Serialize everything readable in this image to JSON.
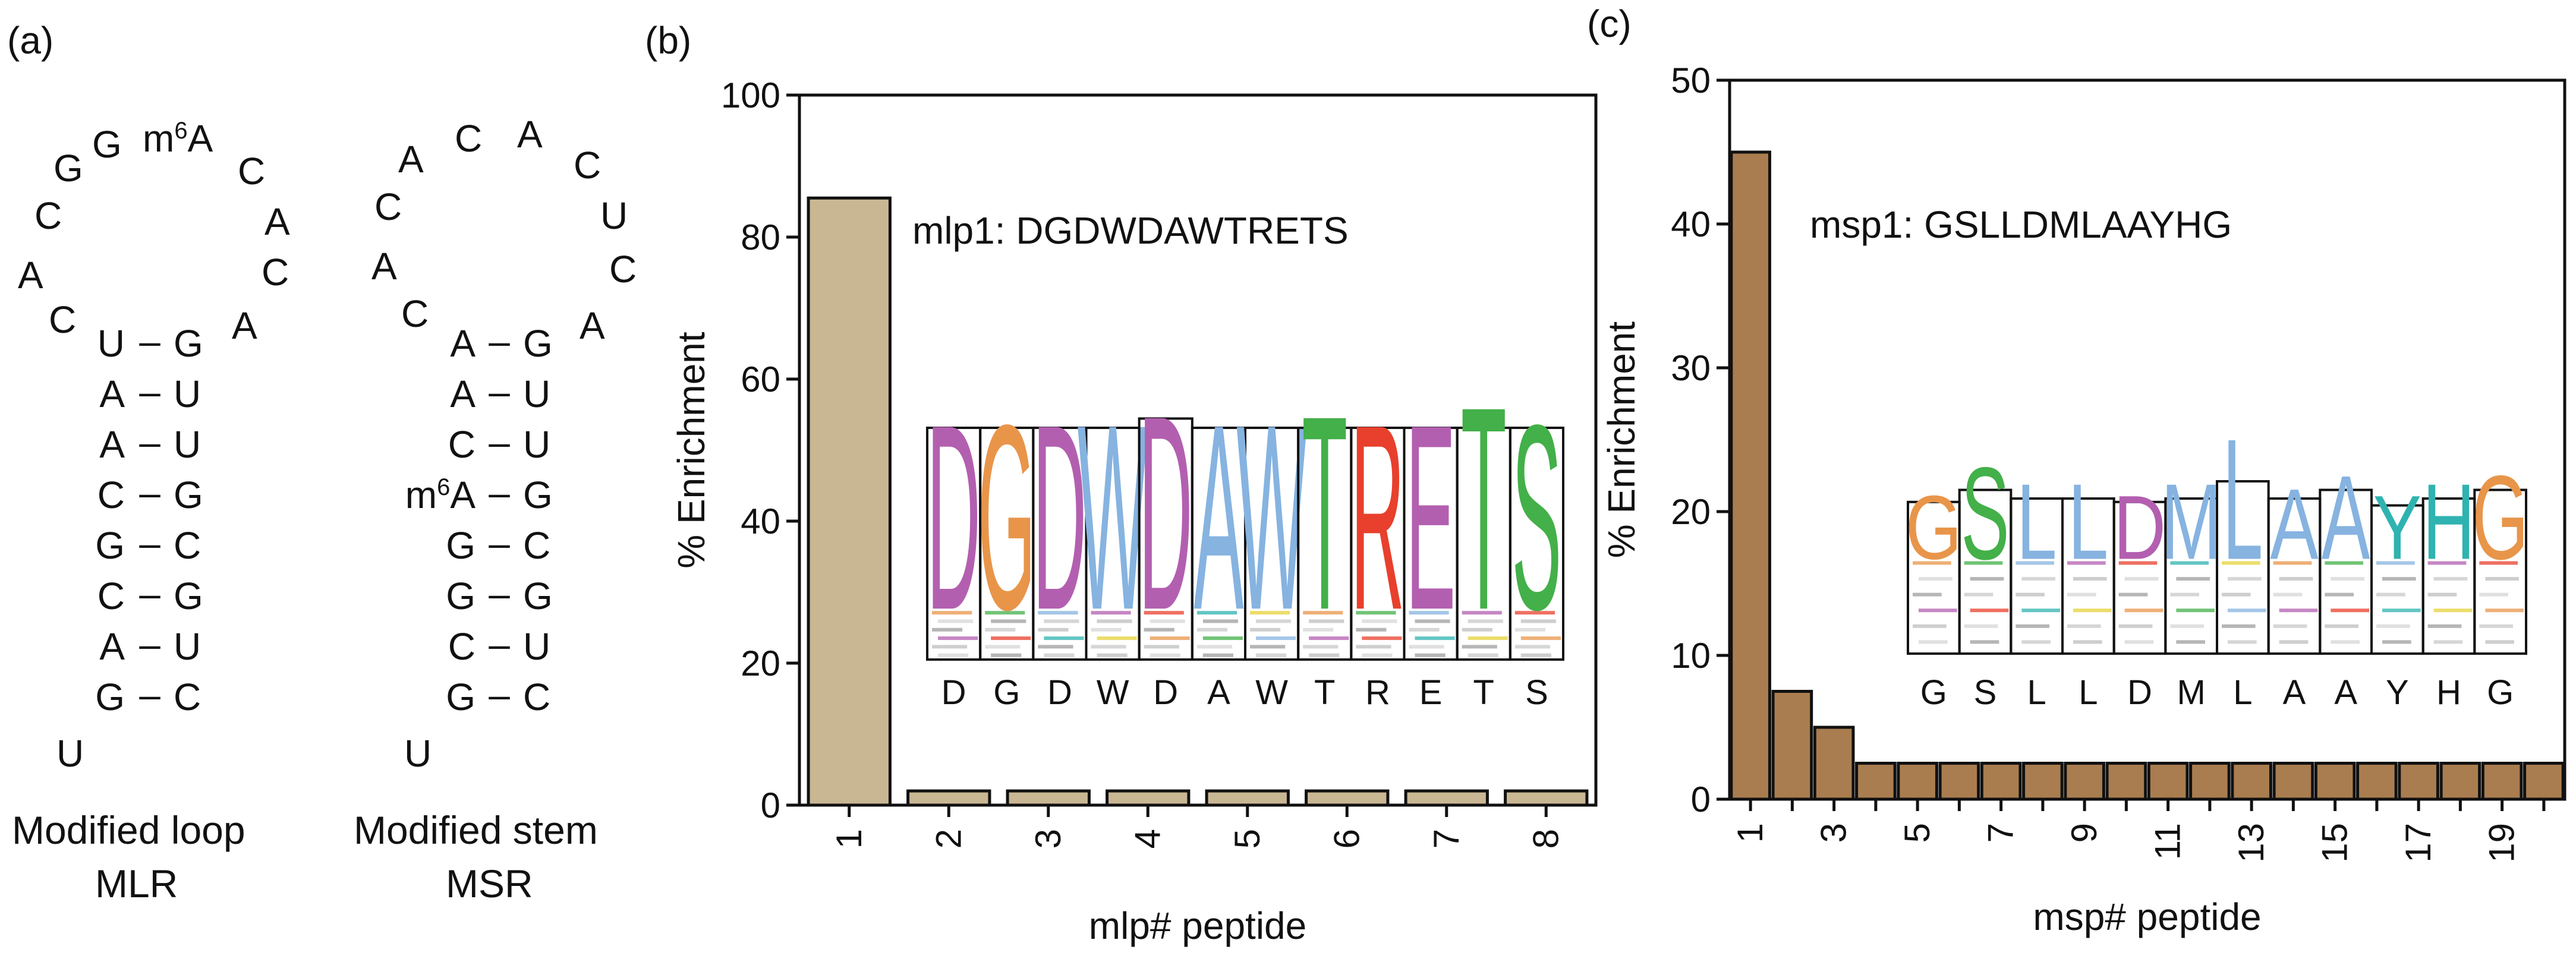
{
  "panel_labels": [
    "(a)",
    "(b)",
    "(c)"
  ],
  "structures": {
    "mlr": {
      "loop": [
        "C",
        "G",
        "G",
        "m6A",
        "C",
        "A",
        "C",
        "A",
        "A",
        "C"
      ],
      "pairs": [
        [
          "U",
          "G"
        ],
        [
          "A",
          "U"
        ],
        [
          "A",
          "U"
        ],
        [
          "C",
          "G"
        ],
        [
          "G",
          "C"
        ],
        [
          "C",
          "G"
        ],
        [
          "A",
          "U"
        ],
        [
          "G",
          "C"
        ]
      ],
      "pair_symbols": [
        "–",
        "–",
        "–",
        "–",
        "–",
        "–",
        "–",
        "–"
      ],
      "tail": "U",
      "caption_line1": "Modified loop",
      "caption_line2": "MLR"
    },
    "msr": {
      "loop": [
        "C",
        "A",
        "C",
        "A",
        "C",
        "U",
        "C",
        "A",
        "A",
        "C"
      ],
      "pairs": [
        [
          "A",
          "G"
        ],
        [
          "A",
          "U"
        ],
        [
          "C",
          "U"
        ],
        [
          "m6A",
          "G"
        ],
        [
          "G",
          "C"
        ],
        [
          "G",
          "G"
        ],
        [
          "C",
          "U"
        ],
        [
          "G",
          "C"
        ]
      ],
      "pair_symbols": [
        "–",
        "–",
        "–",
        "–",
        "–",
        "–",
        "–",
        "–"
      ],
      "tail": "U",
      "caption_line1": "Modified stem",
      "caption_line2": "MSR"
    }
  },
  "chart_data": [
    {
      "type": "bar",
      "panel": "(b)",
      "categories": [
        "1",
        "2",
        "3",
        "4",
        "5",
        "6",
        "7",
        "8"
      ],
      "values": [
        85.5,
        2,
        2,
        2,
        2,
        2,
        2,
        2
      ],
      "ylim": [
        0,
        100
      ],
      "yticks": [
        "0",
        "20",
        "40",
        "60",
        "80",
        "100"
      ],
      "ylabel": "% Enrichment",
      "xlabel": "mlp# peptide",
      "bar_color": "#c9b794",
      "annotation": "mlp1: DGDWDAWTRETS",
      "logo": {
        "letters": [
          "D",
          "G",
          "D",
          "W",
          "D",
          "A",
          "W",
          "T",
          "R",
          "E",
          "T",
          "S"
        ],
        "letter_colors": [
          "#b35fb0",
          "#e8954a",
          "#b35fb0",
          "#86b3e0",
          "#b35fb0",
          "#86b3e0",
          "#86b3e0",
          "#43b049",
          "#e8402c",
          "#b35fb0",
          "#43b049",
          "#43b049"
        ],
        "heights": [
          0.82,
          0.82,
          0.82,
          0.82,
          0.86,
          0.82,
          0.82,
          0.86,
          0.82,
          0.82,
          0.9,
          0.82
        ]
      }
    },
    {
      "type": "bar",
      "panel": "(c)",
      "categories": [
        "1",
        "2",
        "3",
        "4",
        "5",
        "6",
        "7",
        "8",
        "9",
        "10",
        "11",
        "12",
        "13",
        "14",
        "15",
        "16",
        "17",
        "18",
        "19",
        "20"
      ],
      "tick_labels": [
        "1",
        "3",
        "5",
        "7",
        "9",
        "11",
        "13",
        "15",
        "17",
        "19"
      ],
      "values": [
        45,
        7.5,
        5,
        2.5,
        2.5,
        2.5,
        2.5,
        2.5,
        2.5,
        2.5,
        2.5,
        2.5,
        2.5,
        2.5,
        2.5,
        2.5,
        2.5,
        2.5,
        2.5,
        2.5
      ],
      "ylim": [
        0,
        50
      ],
      "yticks": [
        "0",
        "10",
        "20",
        "30",
        "40",
        "50"
      ],
      "ylabel": "% Enrichment",
      "xlabel": "msp# peptide",
      "bar_color": "#a97d4f",
      "annotation": "msp1: GSLLDMLAAYHG",
      "logo": {
        "letters": [
          "G",
          "S",
          "L",
          "L",
          "D",
          "M",
          "L",
          "A",
          "A",
          "Y",
          "H",
          "G"
        ],
        "letter_colors": [
          "#e8954a",
          "#43b049",
          "#86b3e0",
          "#86b3e0",
          "#b35fb0",
          "#86b3e0",
          "#86b3e0",
          "#86b3e0",
          "#86b3e0",
          "#2fb3b0",
          "#2fb3b0",
          "#e8954a"
        ],
        "heights": [
          0.38,
          0.55,
          0.45,
          0.45,
          0.38,
          0.45,
          0.72,
          0.42,
          0.5,
          0.38,
          0.45,
          0.5
        ]
      }
    }
  ]
}
